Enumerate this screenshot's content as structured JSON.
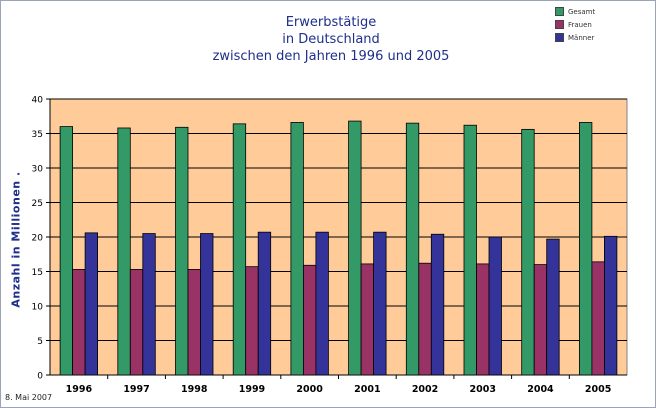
{
  "chart_data": {
    "type": "bar",
    "title_lines": [
      "Erwerbstätige",
      "in Deutschland",
      "zwischen den Jahren 1996 und 2005"
    ],
    "ylabel": "Anzahl in Millionen .",
    "xlabel": "",
    "categories": [
      "1996",
      "1997",
      "1998",
      "1999",
      "2000",
      "2001",
      "2002",
      "2003",
      "2004",
      "2005"
    ],
    "series": [
      {
        "name": "Gesamt",
        "color": "#339966",
        "values": [
          36.0,
          35.8,
          35.9,
          36.4,
          36.6,
          36.8,
          36.5,
          36.2,
          35.6,
          36.6
        ]
      },
      {
        "name": "Frauen",
        "color": "#993366",
        "values": [
          15.3,
          15.3,
          15.3,
          15.7,
          15.9,
          16.1,
          16.2,
          16.1,
          16.0,
          16.4
        ]
      },
      {
        "name": "Männer",
        "color": "#333399",
        "values": [
          20.6,
          20.5,
          20.5,
          20.7,
          20.7,
          20.7,
          20.4,
          20.0,
          19.7,
          20.1
        ]
      }
    ],
    "ylim": [
      0,
      40
    ],
    "yticks": [
      "0",
      "5",
      "10",
      "15",
      "20",
      "25",
      "30",
      "35",
      "40"
    ],
    "grid": true,
    "plot_background": "#ffcc99",
    "legend_position": "top-right"
  },
  "footer": {
    "date": "8. Mai 2007"
  }
}
